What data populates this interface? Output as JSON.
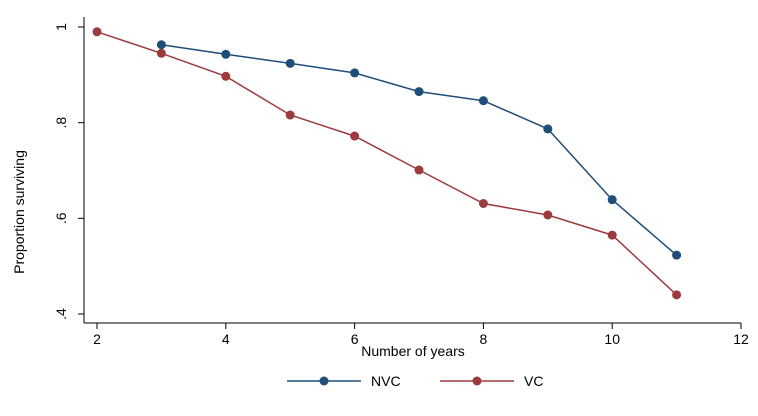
{
  "chart_data": {
    "type": "line",
    "title": "",
    "xlabel": "Number of years",
    "ylabel": "Proportion surviving",
    "xlim": [
      2,
      12
    ],
    "ylim": [
      0.4,
      1.0
    ],
    "x_ticks": [
      2,
      4,
      6,
      8,
      10,
      12
    ],
    "x_tick_labels": [
      "2",
      "4",
      "6",
      "8",
      "10",
      "12"
    ],
    "y_ticks": [
      0.4,
      0.6,
      0.8,
      1.0
    ],
    "y_tick_labels": [
      ".4",
      ".6",
      ".8",
      "1"
    ],
    "y_tick_label_rotation": "vertical",
    "grid": false,
    "legend_position": "bottom",
    "series": [
      {
        "name": "NVC",
        "color": "#1f4e79",
        "marker": "circle",
        "x": [
          3,
          4,
          5,
          6,
          7,
          8,
          9,
          10,
          11
        ],
        "y": [
          0.963,
          0.943,
          0.924,
          0.904,
          0.865,
          0.846,
          0.787,
          0.639,
          0.523
        ]
      },
      {
        "name": "VC",
        "color": "#9b3b3e",
        "marker": "circle",
        "x": [
          2,
          3,
          4,
          5,
          6,
          7,
          8,
          9,
          10,
          11
        ],
        "y": [
          0.99,
          0.945,
          0.897,
          0.816,
          0.772,
          0.701,
          0.631,
          0.607,
          0.565,
          0.44
        ]
      }
    ]
  }
}
